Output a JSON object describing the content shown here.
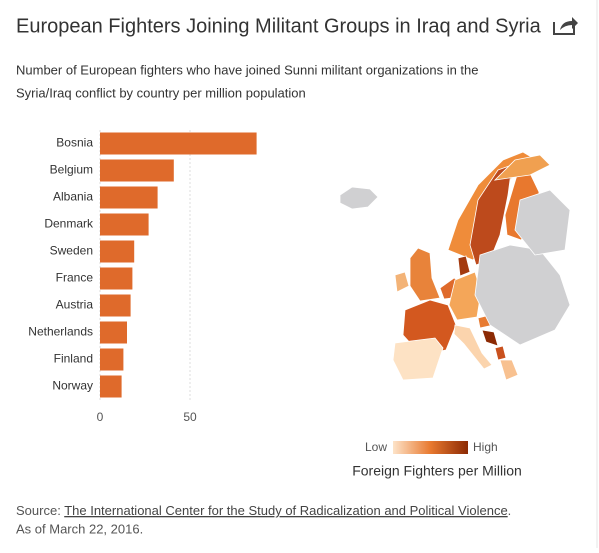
{
  "chart_data": {
    "type": "bar",
    "orientation": "horizontal",
    "title": "European Fighters Joining Militant Groups in Iraq and Syria",
    "subtitle": [
      "Number of European fighters who have joined Sunni militant organizations in the",
      "Syria/Iraq conflict by country per million population"
    ],
    "categories": [
      "Bosnia",
      "Belgium",
      "Albania",
      "Denmark",
      "Sweden",
      "France",
      "Austria",
      "Netherlands",
      "Finland",
      "Norway"
    ],
    "values": [
      87,
      41,
      32,
      27,
      19,
      18,
      17,
      15,
      13,
      12
    ],
    "color": "#df6a2b",
    "xlim": [
      0,
      90
    ],
    "xticks": [
      0,
      50
    ],
    "grid": true,
    "legend": {
      "low": "Low",
      "high": "High",
      "title": "Foreign Fighters per Million",
      "colors": [
        "#fde3c8",
        "#e8792f",
        "#8c2a04"
      ]
    },
    "source": {
      "label": "Source:",
      "link": "The International Center for the Study of Radicalization and Political Violence",
      "end": "."
    },
    "note": "As of March 22, 2016."
  }
}
